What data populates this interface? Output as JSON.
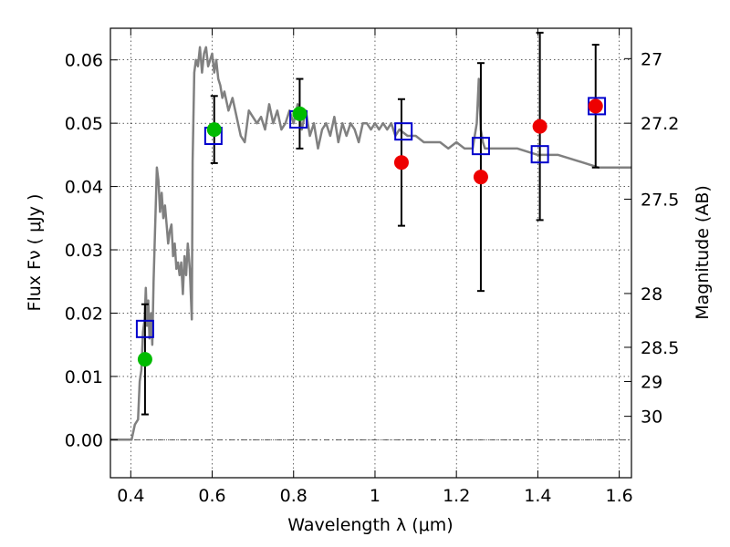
{
  "chart_data": {
    "type": "scatter",
    "xlabel": "Wavelength  λ (μm)",
    "ylabel": "Flux  Fν  ( μJy )",
    "y2label": "Magnitude (AB)",
    "xlim": [
      0.35,
      1.63
    ],
    "ylim": [
      -0.006,
      0.065
    ],
    "x_ticks": [
      {
        "value": 0.4,
        "label": "0.4"
      },
      {
        "value": 0.6,
        "label": "0.6"
      },
      {
        "value": 0.8,
        "label": "0.8"
      },
      {
        "value": 1.0,
        "label": "1"
      },
      {
        "value": 1.2,
        "label": "1.2"
      },
      {
        "value": 1.4,
        "label": "1.4"
      },
      {
        "value": 1.6,
        "label": "1.6"
      }
    ],
    "y_ticks": [
      {
        "value": 0.0,
        "label": "0.00"
      },
      {
        "value": 0.01,
        "label": "0.01"
      },
      {
        "value": 0.02,
        "label": "0.02"
      },
      {
        "value": 0.03,
        "label": "0.03"
      },
      {
        "value": 0.04,
        "label": "0.04"
      },
      {
        "value": 0.05,
        "label": "0.05"
      },
      {
        "value": 0.06,
        "label": "0.06"
      }
    ],
    "y2_ticks": [
      {
        "flux": 0.0602,
        "label": "27"
      },
      {
        "flux": 0.05,
        "label": "27.2"
      },
      {
        "flux": 0.038,
        "label": "27.5"
      },
      {
        "flux": 0.0231,
        "label": "28"
      },
      {
        "flux": 0.0146,
        "label": "28.5"
      },
      {
        "flux": 0.0092,
        "label": "29"
      },
      {
        "flux": 0.0037,
        "label": "30"
      }
    ],
    "grid": true,
    "colors": {
      "model_spectrum": "#808080",
      "model_photometry": "#0000cc",
      "observed_optical": "#00bb00",
      "observed_nir": "#ee0000",
      "error_bars": "#000000",
      "grid": "#000000"
    },
    "model_spectrum": {
      "x": [
        0.35,
        0.39,
        0.402,
        0.41,
        0.418,
        0.422,
        0.426,
        0.43,
        0.434,
        0.437,
        0.44,
        0.443,
        0.446,
        0.45,
        0.453,
        0.456,
        0.46,
        0.464,
        0.468,
        0.472,
        0.476,
        0.48,
        0.484,
        0.488,
        0.492,
        0.496,
        0.5,
        0.504,
        0.508,
        0.512,
        0.516,
        0.52,
        0.524,
        0.528,
        0.532,
        0.536,
        0.54,
        0.545,
        0.55,
        0.552,
        0.556,
        0.56,
        0.565,
        0.57,
        0.575,
        0.58,
        0.585,
        0.59,
        0.595,
        0.6,
        0.605,
        0.61,
        0.615,
        0.62,
        0.625,
        0.63,
        0.64,
        0.65,
        0.66,
        0.67,
        0.68,
        0.69,
        0.7,
        0.71,
        0.72,
        0.73,
        0.74,
        0.75,
        0.76,
        0.77,
        0.78,
        0.79,
        0.8,
        0.81,
        0.82,
        0.83,
        0.84,
        0.85,
        0.86,
        0.87,
        0.88,
        0.89,
        0.9,
        0.91,
        0.92,
        0.93,
        0.94,
        0.95,
        0.96,
        0.97,
        0.98,
        0.99,
        1.0,
        1.01,
        1.02,
        1.03,
        1.04,
        1.05,
        1.06,
        1.08,
        1.1,
        1.12,
        1.14,
        1.16,
        1.18,
        1.2,
        1.22,
        1.24,
        1.25,
        1.255,
        1.26,
        1.265,
        1.27,
        1.28,
        1.3,
        1.35,
        1.4,
        1.45,
        1.5,
        1.55,
        1.58,
        1.6,
        1.63
      ],
      "y": [
        0.0,
        0.0,
        0.0,
        0.0024,
        0.0032,
        0.0092,
        0.011,
        0.017,
        0.019,
        0.024,
        0.018,
        0.022,
        0.016,
        0.02,
        0.015,
        0.025,
        0.034,
        0.043,
        0.041,
        0.036,
        0.039,
        0.035,
        0.037,
        0.034,
        0.031,
        0.033,
        0.034,
        0.029,
        0.031,
        0.027,
        0.028,
        0.026,
        0.028,
        0.023,
        0.029,
        0.026,
        0.031,
        0.027,
        0.019,
        0.044,
        0.058,
        0.06,
        0.059,
        0.062,
        0.058,
        0.061,
        0.062,
        0.059,
        0.06,
        0.061,
        0.058,
        0.06,
        0.057,
        0.056,
        0.054,
        0.055,
        0.052,
        0.054,
        0.051,
        0.048,
        0.047,
        0.052,
        0.051,
        0.05,
        0.051,
        0.049,
        0.053,
        0.05,
        0.052,
        0.049,
        0.05,
        0.052,
        0.05,
        0.053,
        0.049,
        0.052,
        0.048,
        0.05,
        0.046,
        0.049,
        0.05,
        0.048,
        0.051,
        0.047,
        0.05,
        0.048,
        0.05,
        0.049,
        0.047,
        0.05,
        0.05,
        0.049,
        0.05,
        0.049,
        0.05,
        0.049,
        0.05,
        0.048,
        0.049,
        0.048,
        0.048,
        0.047,
        0.047,
        0.047,
        0.046,
        0.047,
        0.046,
        0.046,
        0.05,
        0.057,
        0.049,
        0.047,
        0.046,
        0.046,
        0.046,
        0.046,
        0.045,
        0.045,
        0.044,
        0.043,
        0.043,
        0.043,
        0.043
      ]
    },
    "model_photometry": {
      "x": [
        0.435,
        0.603,
        0.812,
        1.07,
        1.26,
        1.405,
        1.545
      ],
      "y": [
        0.0175,
        0.048,
        0.0506,
        0.0487,
        0.0464,
        0.0451,
        0.0527
      ]
    },
    "observed_optical": {
      "x": [
        0.435,
        0.605,
        0.815
      ],
      "y": [
        0.0127,
        0.049,
        0.0515
      ],
      "err": [
        0.0087,
        0.0053,
        0.0055
      ]
    },
    "observed_nir": {
      "x": [
        1.065,
        1.26,
        1.405,
        1.542
      ],
      "y": [
        0.0438,
        0.0415,
        0.0495,
        0.0527
      ],
      "err_low": [
        0.01,
        0.018,
        0.0148,
        0.0097
      ],
      "err_high": [
        0.01,
        0.018,
        0.0148,
        0.0097
      ]
    }
  }
}
